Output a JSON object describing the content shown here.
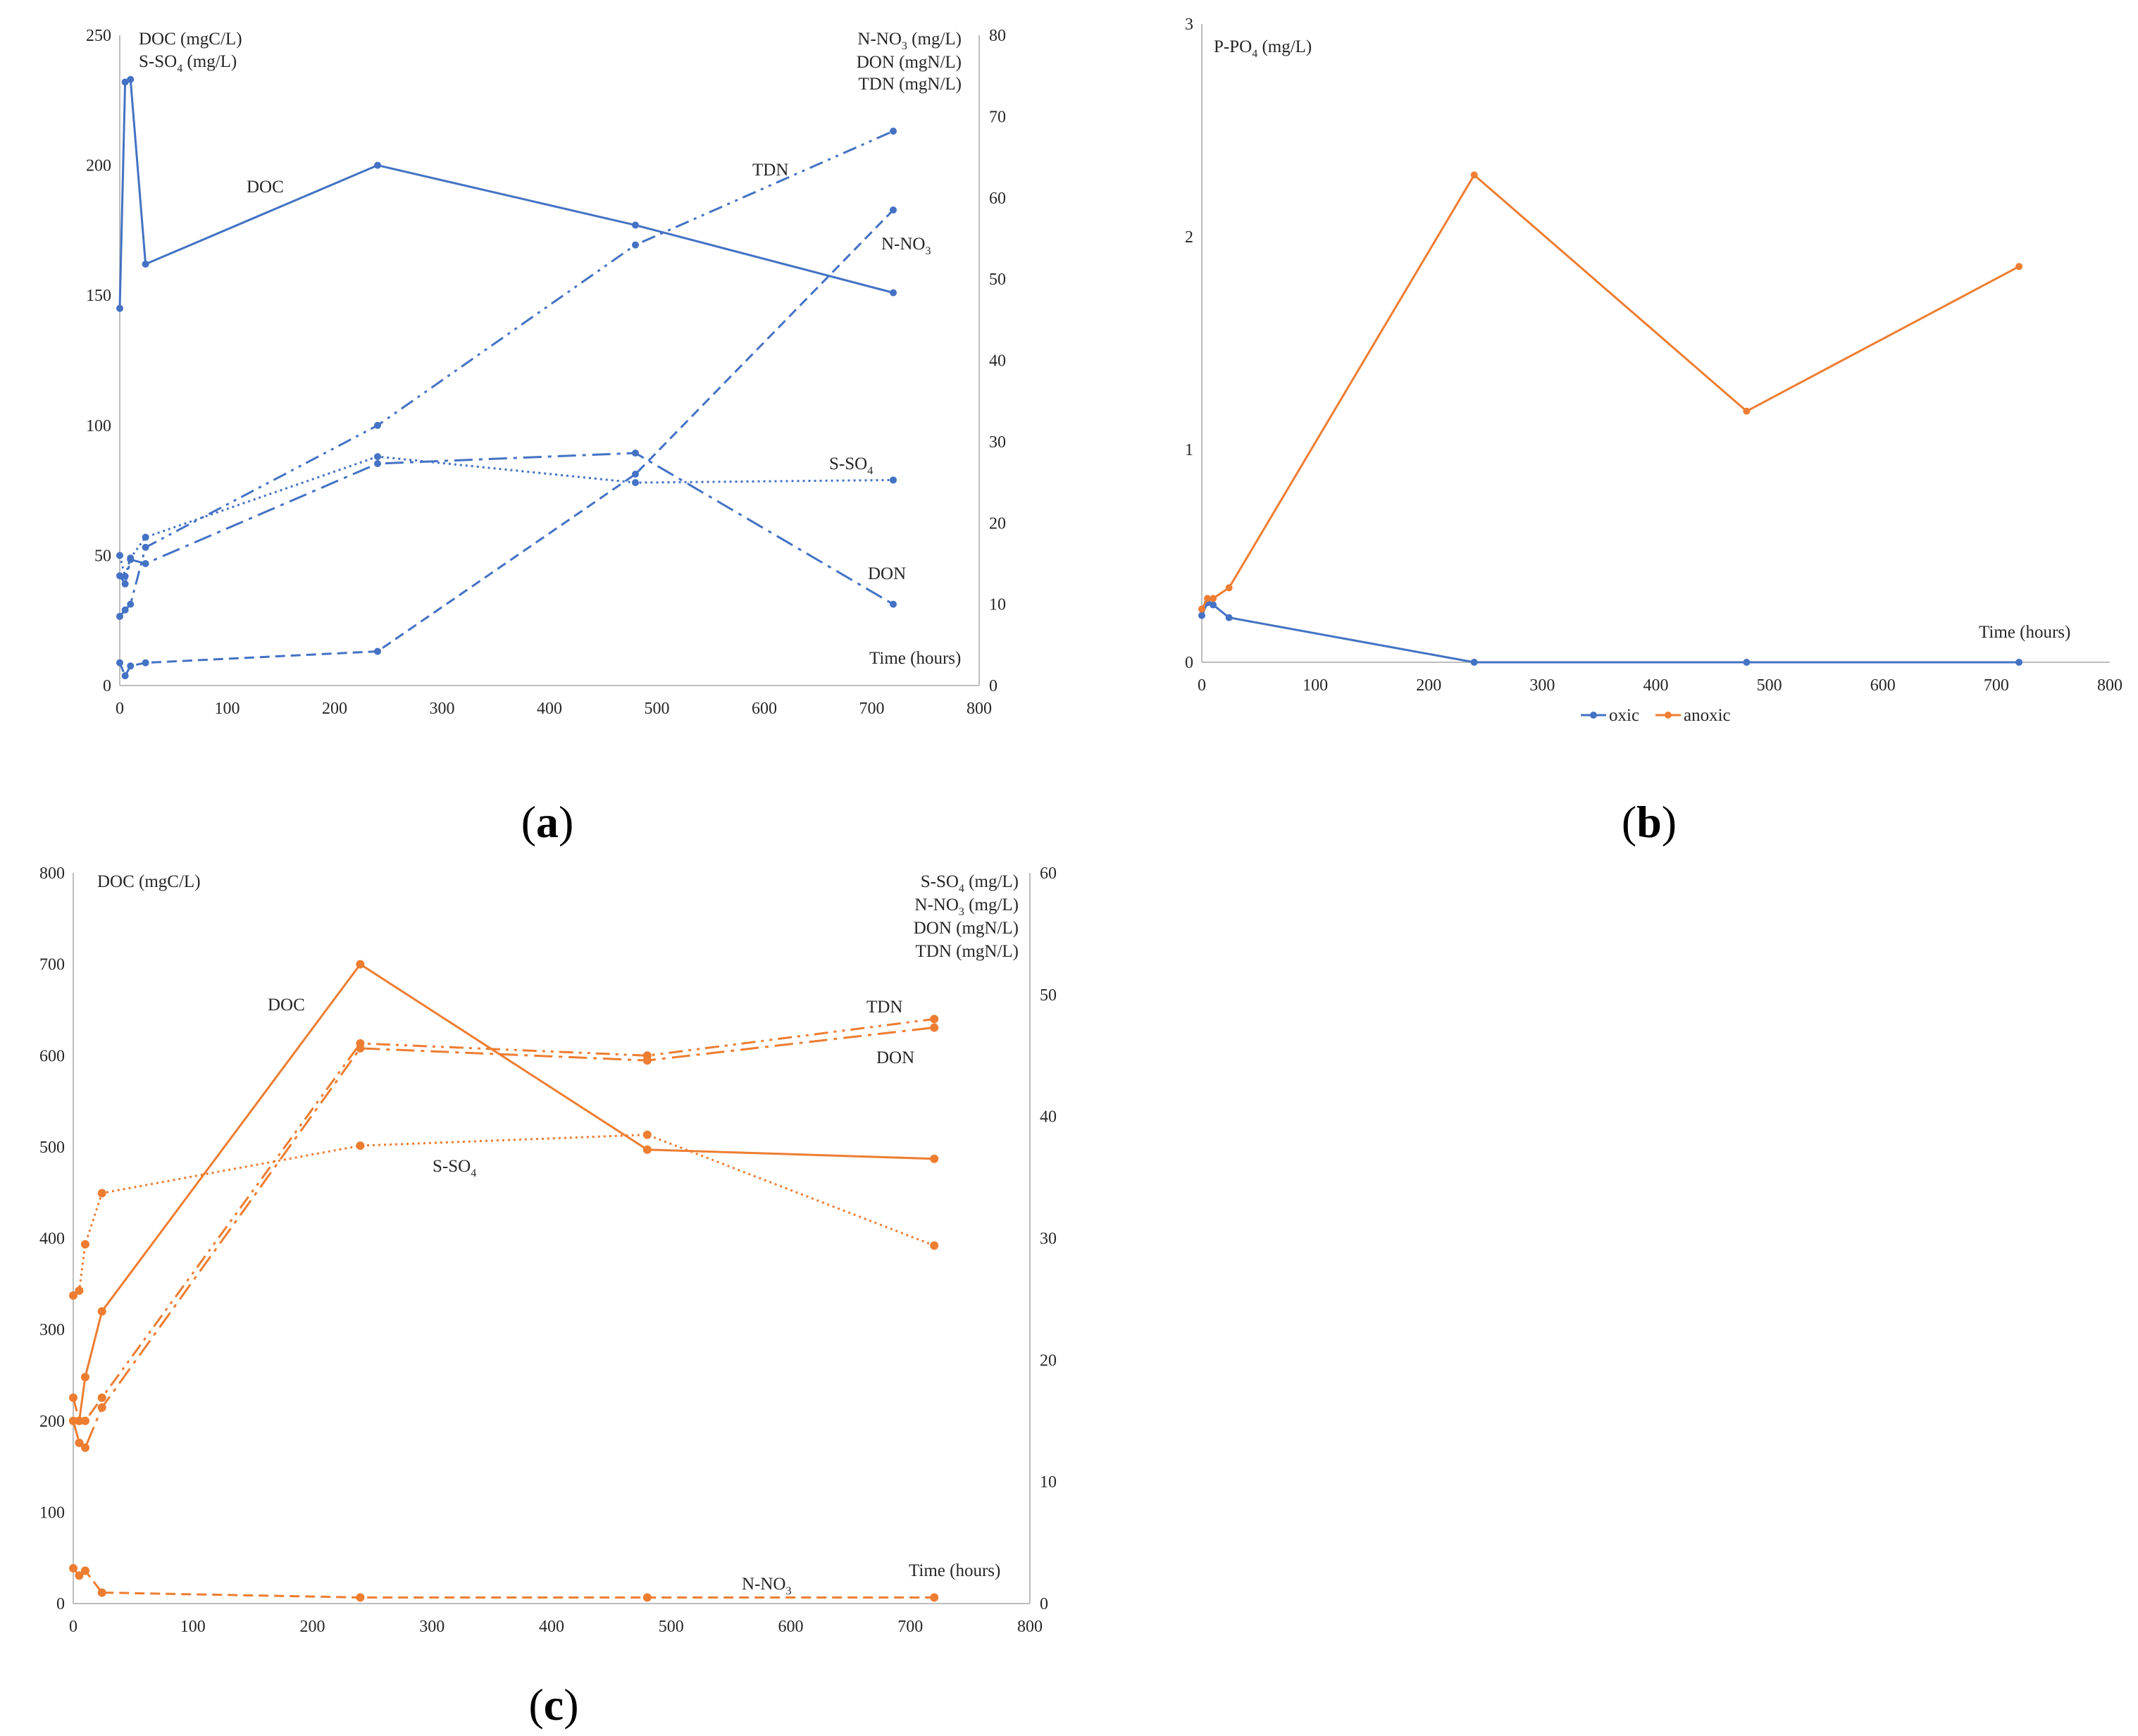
{
  "chart_data": [
    {
      "panel": "a",
      "type": "line",
      "color": "#4472C4",
      "panel_label": "a",
      "x_ticks": [
        "0",
        "100",
        "200",
        "300",
        "400",
        "500",
        "600",
        "700",
        "800"
      ],
      "xlim": [
        0,
        800
      ],
      "xlabel": "Time (hours)",
      "left_axis": {
        "labels": [
          "DOC (mgC/L)",
          "S-SO",
          "4",
          " (mg/L)"
        ],
        "ylim": [
          0,
          250
        ],
        "ticks": [
          "0",
          "50",
          "100",
          "150",
          "200",
          "250"
        ]
      },
      "right_axis": {
        "labels": [
          {
            "main": "N-NO",
            "sub": "3",
            "tail": " (mg/L)"
          },
          {
            "main": "DON (mgN/L)",
            "sub": "",
            "tail": ""
          },
          {
            "main": "TDN (mgN/L)",
            "sub": "",
            "tail": ""
          }
        ],
        "ylim": [
          0,
          80
        ],
        "ticks": [
          "0",
          "10",
          "20",
          "30",
          "40",
          "50",
          "60",
          "70",
          "80"
        ]
      },
      "series": [
        {
          "name": "DOC",
          "label": {
            "main": "DOC",
            "sub": "",
            "tail": ""
          },
          "axis": "left",
          "style": "solid",
          "x": [
            0,
            5,
            10,
            24,
            240,
            480,
            720
          ],
          "y": [
            145,
            232,
            233,
            162,
            200,
            177,
            151
          ]
        },
        {
          "name": "S-SO4",
          "label": {
            "main": "S-SO",
            "sub": "4",
            "tail": ""
          },
          "axis": "left",
          "style": "dot",
          "x": [
            0,
            5,
            10,
            24,
            240,
            480,
            720
          ],
          "y": [
            50,
            42,
            49,
            57,
            88,
            78,
            79
          ]
        },
        {
          "name": "N-NO3",
          "label": {
            "main": "N-NO",
            "sub": "3",
            "tail": ""
          },
          "axis": "right",
          "style": "dash",
          "x": [
            0,
            5,
            10,
            24,
            240,
            480,
            720
          ],
          "y": [
            2.8,
            1.2,
            2.4,
            2.8,
            4.2,
            26,
            58.5
          ]
        },
        {
          "name": "DON",
          "label": {
            "main": "DON",
            "sub": "",
            "tail": ""
          },
          "axis": "right",
          "style": "longdashdot",
          "x": [
            0,
            5,
            10,
            24,
            240,
            480,
            720
          ],
          "y": [
            13.5,
            12.5,
            15.5,
            15,
            27.3,
            28.6,
            10
          ]
        },
        {
          "name": "TDN",
          "label": {
            "main": "TDN",
            "sub": "",
            "tail": ""
          },
          "axis": "right",
          "style": "dashdotdot",
          "x": [
            0,
            5,
            10,
            24,
            240,
            480,
            720
          ],
          "y": [
            8.5,
            9.3,
            10,
            17,
            32,
            54.2,
            68.2
          ]
        }
      ]
    },
    {
      "panel": "b",
      "type": "line",
      "panel_label": "b",
      "x_ticks": [
        "0",
        "100",
        "200",
        "300",
        "400",
        "500",
        "600",
        "700",
        "800"
      ],
      "xlim": [
        0,
        800
      ],
      "xlabel": "Time (hours)",
      "ylabel": {
        "main": "P-PO",
        "sub": "4",
        "tail": " (mg/L)"
      },
      "ylim": [
        0,
        3
      ],
      "y_ticks": [
        "0",
        "1",
        "2",
        "3"
      ],
      "legend": [
        "oxic",
        "anoxic"
      ],
      "series": [
        {
          "name": "oxic",
          "color": "#4472C4",
          "x": [
            0,
            5,
            10,
            24,
            240,
            480,
            720
          ],
          "y": [
            0.22,
            0.28,
            0.27,
            0.21,
            0.0,
            0.0,
            0.0
          ]
        },
        {
          "name": "anoxic",
          "color": "#ED7D31",
          "x": [
            0,
            5,
            10,
            24,
            240,
            480,
            720
          ],
          "y": [
            0.25,
            0.3,
            0.3,
            0.35,
            2.29,
            1.18,
            1.86
          ]
        }
      ]
    },
    {
      "panel": "c",
      "type": "line",
      "color": "#ED7D31",
      "panel_label": "c",
      "x_ticks": [
        "0",
        "100",
        "200",
        "300",
        "400",
        "500",
        "600",
        "700",
        "800"
      ],
      "xlim": [
        0,
        800
      ],
      "xlabel": "Time (hours)",
      "left_axis": {
        "labels": [
          "DOC (mgC/L)"
        ],
        "ylim": [
          0,
          800
        ],
        "ticks": [
          "0",
          "100",
          "200",
          "300",
          "400",
          "500",
          "600",
          "700",
          "800"
        ]
      },
      "right_axis": {
        "labels": [
          {
            "main": "S-SO",
            "sub": "4",
            "tail": " (mg/L)"
          },
          {
            "main": "N-NO",
            "sub": "3",
            "tail": " (mg/L)"
          },
          {
            "main": "DON (mgN/L)",
            "sub": "",
            "tail": ""
          },
          {
            "main": "TDN (mgN/L)",
            "sub": "",
            "tail": ""
          }
        ],
        "ylim": [
          0,
          60
        ],
        "ticks": [
          "0",
          "10",
          "20",
          "30",
          "40",
          "50",
          "60"
        ]
      },
      "series": [
        {
          "name": "DOC",
          "label": {
            "main": "DOC",
            "sub": "",
            "tail": ""
          },
          "axis": "left",
          "style": "solid",
          "x": [
            0,
            5,
            10,
            24,
            240,
            480,
            720
          ],
          "y": [
            200,
            200,
            248,
            320,
            700,
            497,
            487
          ]
        },
        {
          "name": "S-SO4",
          "label": {
            "main": "S-SO",
            "sub": "4",
            "tail": ""
          },
          "axis": "right",
          "style": "dot",
          "x": [
            0,
            5,
            10,
            24,
            240,
            480,
            720
          ],
          "y": [
            25.3,
            25.7,
            29.5,
            33.7,
            37.6,
            38.5,
            29.4
          ]
        },
        {
          "name": "N-NO3",
          "label": {
            "main": "N-NO",
            "sub": "3",
            "tail": ""
          },
          "axis": "right",
          "style": "dash",
          "x": [
            0,
            5,
            10,
            24,
            240,
            480,
            720
          ],
          "y": [
            2.9,
            2.3,
            2.7,
            0.9,
            0.5,
            0.5,
            0.5
          ]
        },
        {
          "name": "DON",
          "label": {
            "main": "DON",
            "sub": "",
            "tail": ""
          },
          "axis": "right",
          "style": "longdashdot",
          "x": [
            0,
            5,
            10,
            24,
            240,
            480,
            720
          ],
          "y": [
            15,
            13.2,
            12.8,
            16.1,
            45.6,
            44.6,
            47.3
          ]
        },
        {
          "name": "TDN",
          "label": {
            "main": "TDN",
            "sub": "",
            "tail": ""
          },
          "axis": "right",
          "style": "dashdotdot",
          "x": [
            0,
            5,
            10,
            24,
            240,
            480,
            720
          ],
          "y": [
            16.9,
            15,
            15,
            16.9,
            46,
            45,
            48
          ]
        }
      ]
    }
  ]
}
